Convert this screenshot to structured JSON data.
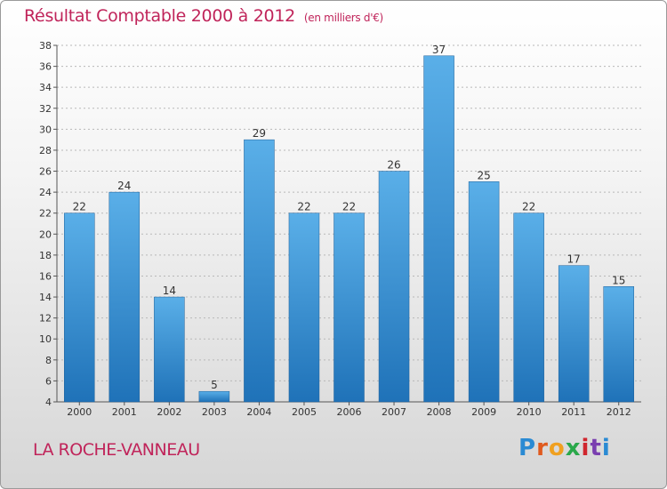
{
  "header": {
    "title": "Résultat Comptable 2000 à 2012",
    "subtitle": "(en milliers d'€)"
  },
  "footer": {
    "place": "LA ROCHE-VANNEAU",
    "logo_text": "Proxiti"
  },
  "colors": {
    "bar_top": "#5aafe8",
    "bar_bottom": "#1f72b8",
    "accent": "#c0245a"
  },
  "chart_data": {
    "type": "bar",
    "title": "Résultat Comptable 2000 à 2012",
    "subtitle": "(en milliers d'€)",
    "xlabel": "",
    "ylabel": "",
    "categories": [
      "2000",
      "2001",
      "2002",
      "2003",
      "2004",
      "2005",
      "2006",
      "2007",
      "2008",
      "2009",
      "2010",
      "2011",
      "2012"
    ],
    "values": [
      22,
      24,
      14,
      5,
      29,
      22,
      22,
      26,
      37,
      25,
      22,
      17,
      15
    ],
    "ylim": [
      4,
      38
    ],
    "yticks": [
      4,
      6,
      8,
      10,
      12,
      14,
      16,
      18,
      20,
      22,
      24,
      26,
      28,
      30,
      32,
      34,
      36,
      38
    ],
    "grid": true,
    "legend": "none"
  }
}
